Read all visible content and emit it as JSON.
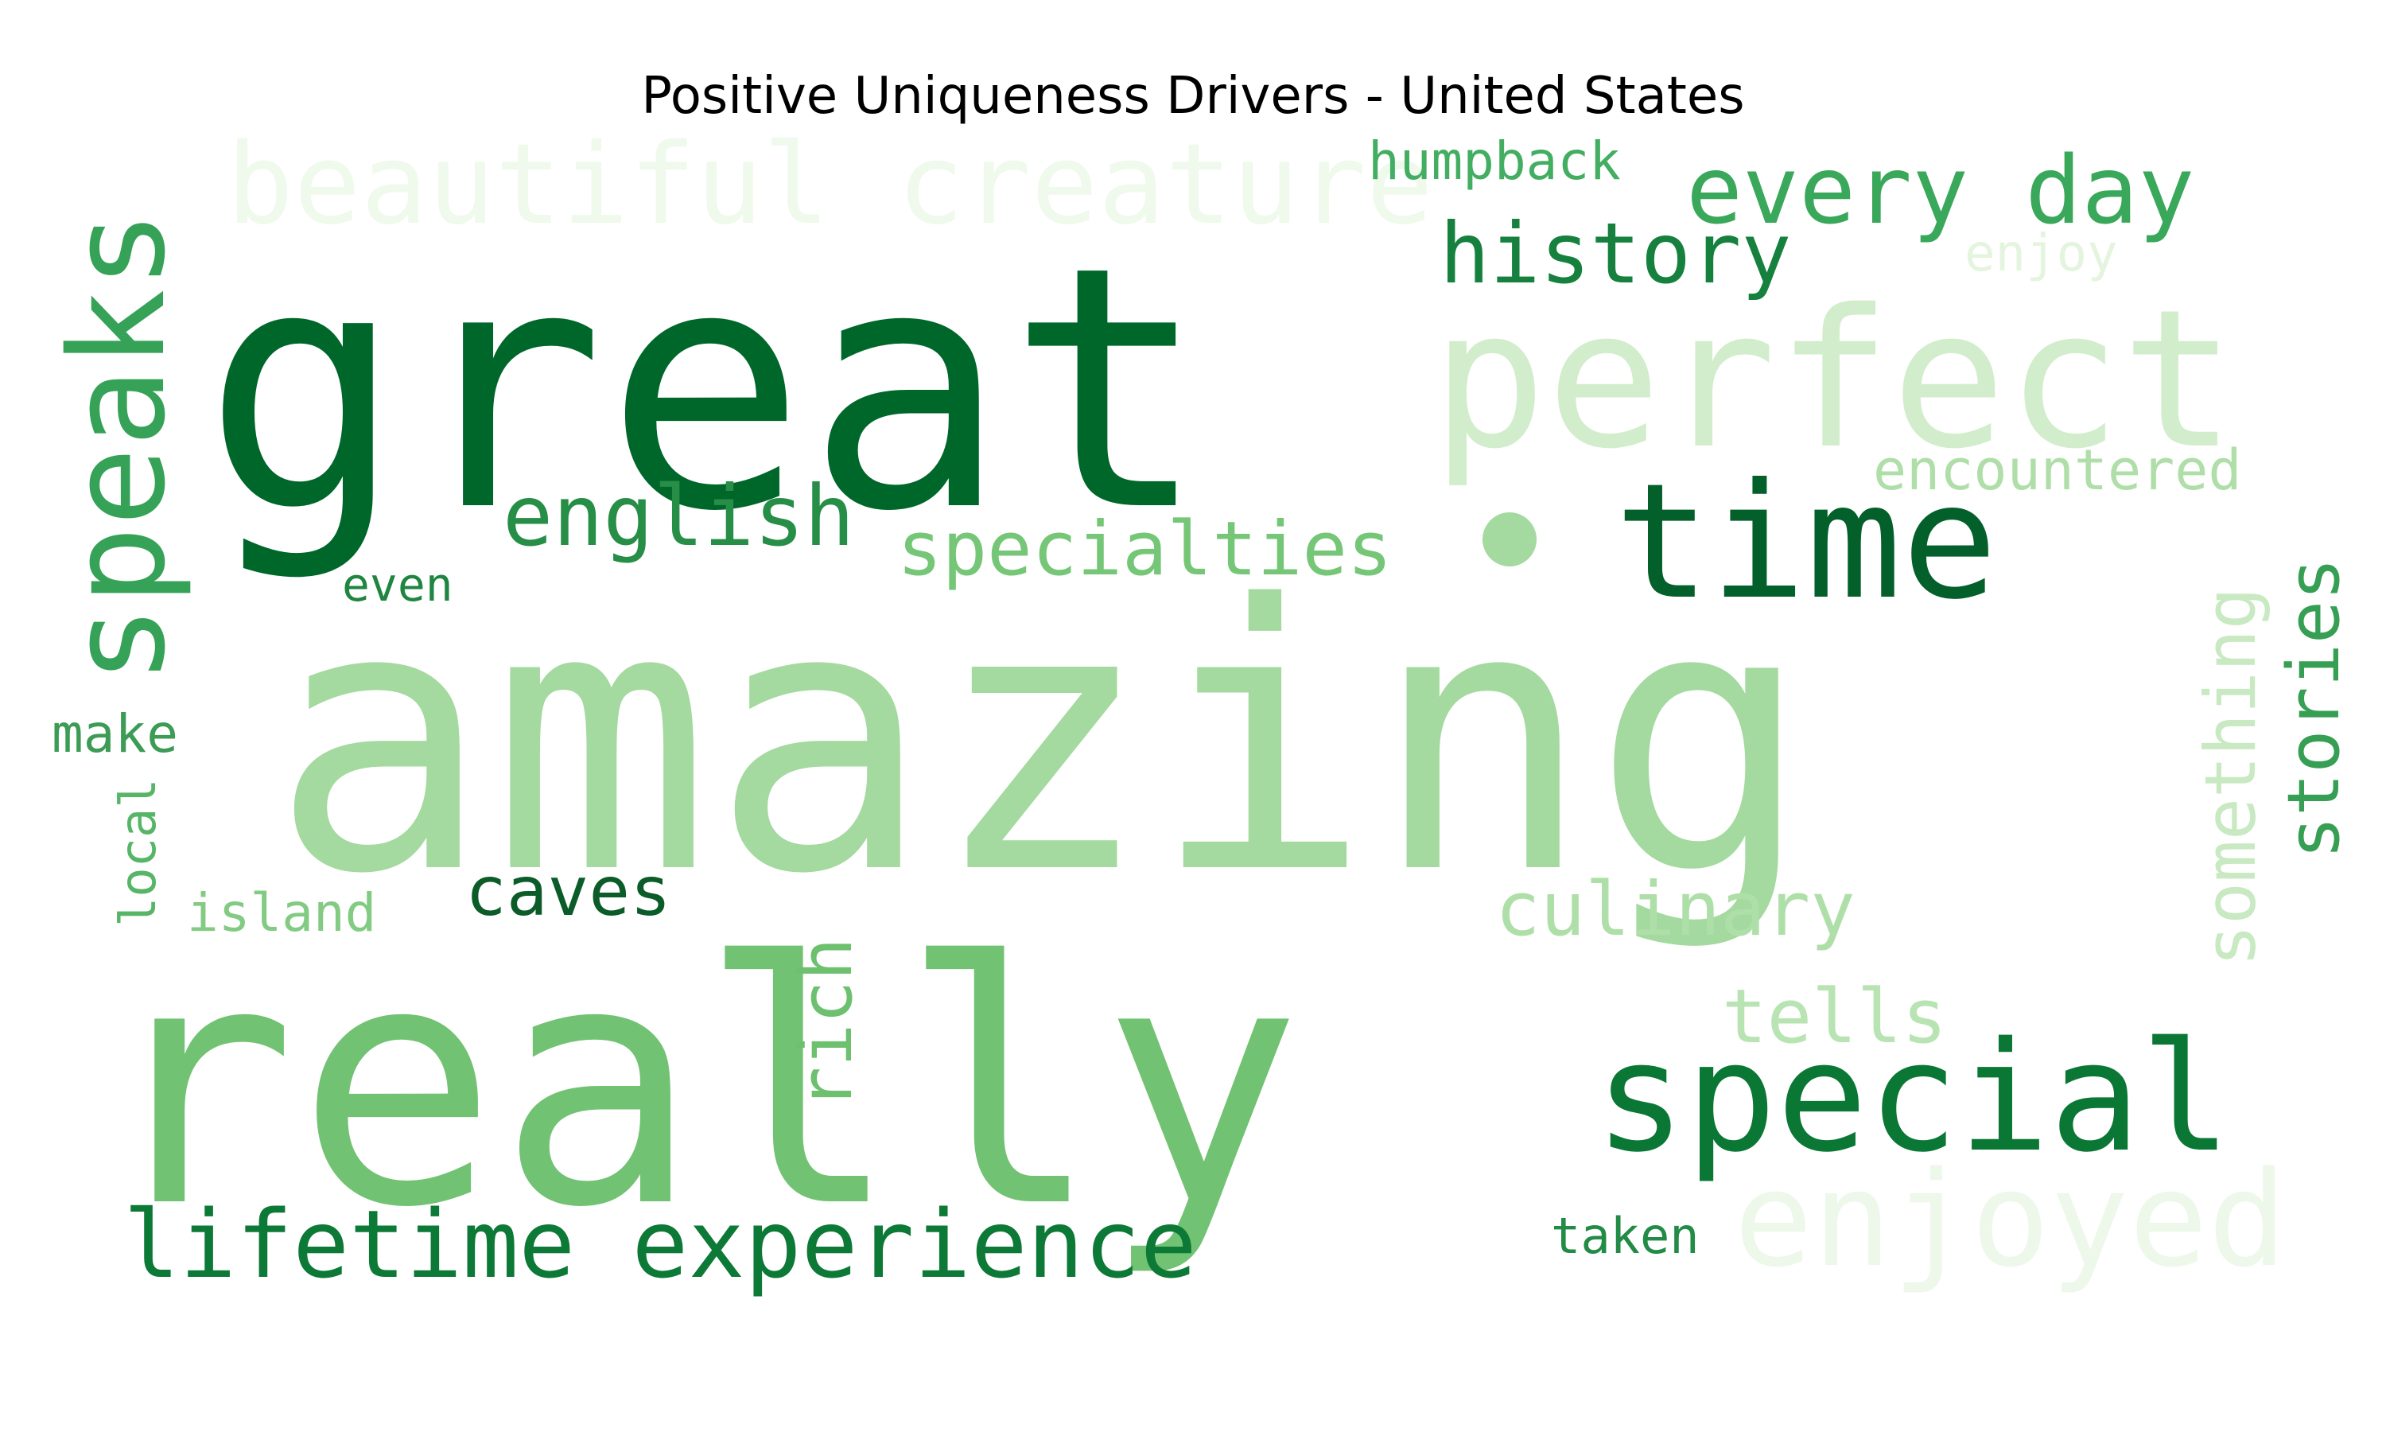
{
  "chart_data": {
    "type": "wordcloud",
    "title": "Positive Uniqueness Drivers - United States",
    "colormap": "Greens",
    "words": [
      {
        "text": "amazing",
        "weight": 100,
        "color": "#a4d99f"
      },
      {
        "text": "really",
        "weight": 92,
        "color": "#72c273"
      },
      {
        "text": "great",
        "weight": 90,
        "color": "#00672a"
      },
      {
        "text": "perfect",
        "weight": 45,
        "color": "#d2edcc"
      },
      {
        "text": "special",
        "weight": 42,
        "color": "#0b7735"
      },
      {
        "text": "time",
        "weight": 40,
        "color": "#04602b"
      },
      {
        "text": "speaks",
        "weight": 34,
        "color": "#35a257"
      },
      {
        "text": "enjoyed",
        "weight": 33,
        "color": "#edf8ea"
      },
      {
        "text": "beautiful creature",
        "weight": 27,
        "color": "#eff9ec"
      },
      {
        "text": "lifetime experience",
        "weight": 23,
        "color": "#0d7937"
      },
      {
        "text": "every day",
        "weight": 22,
        "color": "#3aa85a"
      },
      {
        "text": "history",
        "weight": 19,
        "color": "#16813e"
      },
      {
        "text": "english",
        "weight": 18,
        "color": "#268e47"
      },
      {
        "text": "specialties",
        "weight": 17,
        "color": "#75c677"
      },
      {
        "text": "culinary",
        "weight": 16,
        "color": "#afdfa9"
      },
      {
        "text": "tells",
        "weight": 15,
        "color": "#b8e3b2"
      },
      {
        "text": "stories",
        "weight": 15,
        "color": "#369f54"
      },
      {
        "text": "something",
        "weight": 15,
        "color": "#c8e9c1"
      },
      {
        "text": "rich",
        "weight": 14,
        "color": "#6cc06e"
      },
      {
        "text": "caves",
        "weight": 13,
        "color": "#0b5c29"
      },
      {
        "text": "encountered",
        "weight": 12,
        "color": "#afdea9"
      },
      {
        "text": "humpback",
        "weight": 12,
        "color": "#43ae62"
      },
      {
        "text": "enjoy",
        "weight": 11,
        "color": "#e4f4df"
      },
      {
        "text": "make",
        "weight": 11,
        "color": "#3c9c55"
      },
      {
        "text": "taken",
        "weight": 10,
        "color": "#228b45"
      },
      {
        "text": "island",
        "weight": 10,
        "color": "#83cb83"
      },
      {
        "text": "local",
        "weight": 10,
        "color": "#56b567"
      },
      {
        "text": "even",
        "weight": 10,
        "color": "#1f8540"
      }
    ]
  }
}
